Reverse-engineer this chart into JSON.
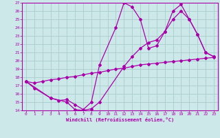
{
  "bg_color": "#cce8e8",
  "grid_color": "#aacccc",
  "line_color": "#aa00aa",
  "xlabel": "Windchill (Refroidissement éolien,°C)",
  "xlim": [
    -0.5,
    23.5
  ],
  "ylim": [
    14,
    27
  ],
  "yticks": [
    14,
    15,
    16,
    17,
    18,
    19,
    20,
    21,
    22,
    23,
    24,
    25,
    26,
    27
  ],
  "xticks": [
    0,
    1,
    2,
    3,
    4,
    5,
    6,
    7,
    8,
    9,
    10,
    11,
    12,
    13,
    14,
    15,
    16,
    17,
    18,
    19,
    20,
    21,
    22,
    23
  ],
  "line1_x": [
    0,
    1,
    2,
    3,
    4,
    5,
    6,
    7,
    8,
    9,
    10,
    11,
    12,
    13,
    14,
    15,
    16,
    17,
    18,
    19,
    20,
    21,
    22,
    23
  ],
  "line1_y": [
    17.5,
    17.3,
    17.5,
    17.7,
    17.8,
    18.0,
    18.1,
    18.3,
    18.5,
    18.6,
    18.8,
    19.0,
    19.1,
    19.3,
    19.5,
    19.6,
    19.7,
    19.8,
    19.9,
    20.0,
    20.1,
    20.2,
    20.3,
    20.4
  ],
  "line2_x": [
    0,
    1,
    3,
    4,
    5,
    6,
    7,
    8,
    9,
    11,
    12,
    13,
    14,
    15,
    16,
    17,
    18,
    19,
    20,
    21,
    22,
    23
  ],
  "line2_y": [
    17.5,
    16.7,
    15.5,
    15.2,
    15.3,
    14.7,
    14.1,
    15.0,
    19.5,
    24.0,
    27.0,
    26.5,
    25.0,
    21.5,
    21.8,
    23.5,
    26.0,
    26.8,
    25.0,
    23.2,
    21.0,
    20.5
  ],
  "line3_x": [
    0,
    3,
    5,
    6,
    7,
    8,
    9,
    12,
    13,
    14,
    15,
    16,
    17,
    18,
    19,
    20,
    21,
    22,
    23
  ],
  "line3_y": [
    17.5,
    15.5,
    15.0,
    14.1,
    14.0,
    14.2,
    15.0,
    19.3,
    20.5,
    21.5,
    22.2,
    22.5,
    23.5,
    25.0,
    26.0,
    25.0,
    23.2,
    21.0,
    20.5
  ]
}
